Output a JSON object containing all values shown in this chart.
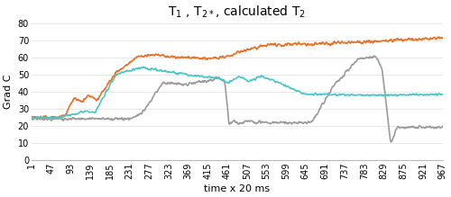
{
  "title": "T$_1$ , T$_{2*}$, calculated T$_2$",
  "xlabel": "time x 20 ms",
  "ylabel": "Grad C",
  "xlim": [
    1,
    967
  ],
  "ylim": [
    0,
    80
  ],
  "yticks": [
    0,
    10,
    20,
    30,
    40,
    50,
    60,
    70,
    80
  ],
  "xtick_labels": [
    "1",
    "47",
    "93",
    "139",
    "185",
    "231",
    "277",
    "323",
    "369",
    "415",
    "461",
    "507",
    "553",
    "599",
    "645",
    "691",
    "737",
    "783",
    "829",
    "875",
    "921",
    "967"
  ],
  "xtick_values": [
    1,
    47,
    93,
    139,
    185,
    231,
    277,
    323,
    369,
    415,
    461,
    507,
    553,
    599,
    645,
    691,
    737,
    783,
    829,
    875,
    921,
    967
  ],
  "color_t1": "#E8722A",
  "color_t2star": "#9B9B9B",
  "color_t2calc": "#4DC5C5",
  "linewidth": 1.2,
  "title_fontsize": 10,
  "axis_fontsize": 8,
  "tick_fontsize": 7,
  "bg_color": "#FFFFFF",
  "grid_color": "#E8E8E8"
}
